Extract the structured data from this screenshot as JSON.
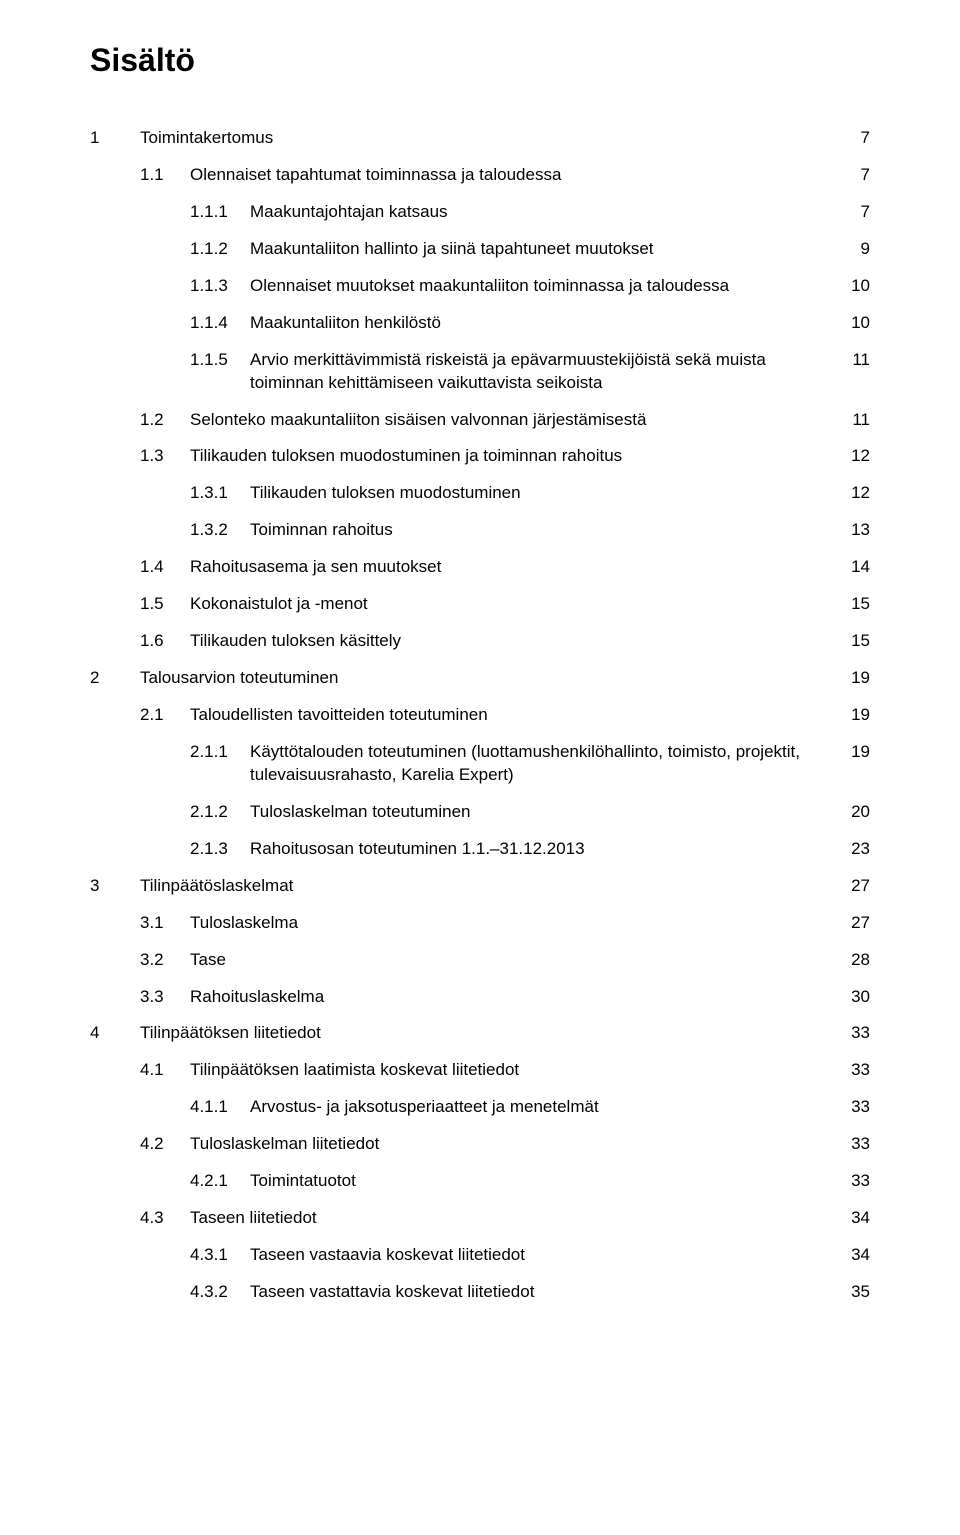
{
  "title": "Sisältö",
  "toc": [
    {
      "level": 0,
      "num": "1",
      "label": "Toimintakertomus",
      "page": "7"
    },
    {
      "level": 1,
      "num": "1.1",
      "label": "Olennaiset tapahtumat toiminnassa ja taloudessa",
      "page": "7"
    },
    {
      "level": 2,
      "num": "1.1.1",
      "label": "Maakuntajohtajan katsaus",
      "page": "7"
    },
    {
      "level": 2,
      "num": "1.1.2",
      "label": "Maakuntaliiton hallinto ja siinä tapahtuneet muutokset",
      "page": "9"
    },
    {
      "level": 2,
      "num": "1.1.3",
      "label": "Olennaiset muutokset maakuntaliiton toiminnassa ja taloudessa",
      "page": "10"
    },
    {
      "level": 2,
      "num": "1.1.4",
      "label": "Maakuntaliiton henkilöstö",
      "page": "10"
    },
    {
      "level": 2,
      "num": "1.1.5",
      "label": "Arvio merkittävimmistä riskeistä ja epävarmuustekijöistä sekä muista toiminnan kehittämiseen vaikuttavista seikoista",
      "page": "11"
    },
    {
      "level": 1,
      "num": "1.2",
      "label": "Selonteko maakuntaliiton sisäisen valvonnan järjestämisestä",
      "page": "11"
    },
    {
      "level": 1,
      "num": "1.3",
      "label": "Tilikauden tuloksen muodostuminen ja toiminnan rahoitus",
      "page": "12"
    },
    {
      "level": 2,
      "num": "1.3.1",
      "label": "Tilikauden tuloksen muodostuminen",
      "page": "12"
    },
    {
      "level": 2,
      "num": "1.3.2",
      "label": "Toiminnan rahoitus",
      "page": "13"
    },
    {
      "level": 1,
      "num": "1.4",
      "label": "Rahoitusasema ja sen muutokset",
      "page": "14"
    },
    {
      "level": 1,
      "num": "1.5",
      "label": "Kokonaistulot ja -menot",
      "page": "15"
    },
    {
      "level": 1,
      "num": "1.6",
      "label": "Tilikauden tuloksen käsittely",
      "page": "15"
    },
    {
      "level": 0,
      "num": "2",
      "label": "Talousarvion toteutuminen",
      "page": "19"
    },
    {
      "level": 1,
      "num": "2.1",
      "label": "Taloudellisten tavoitteiden toteutuminen",
      "page": "19"
    },
    {
      "level": 2,
      "num": "2.1.1",
      "label": "Käyttötalouden toteutuminen (luottamushenkilöhallinto, toimisto, projektit, tulevaisuusrahasto, Karelia Expert)",
      "page": "19"
    },
    {
      "level": 2,
      "num": "2.1.2",
      "label": "Tuloslaskelman toteutuminen",
      "page": "20"
    },
    {
      "level": 2,
      "num": "2.1.3",
      "label": "Rahoitusosan toteutuminen 1.1.–31.12.2013",
      "page": "23"
    },
    {
      "level": 0,
      "num": "3",
      "label": "Tilinpäätöslaskelmat",
      "page": "27"
    },
    {
      "level": 1,
      "num": "3.1",
      "label": "Tuloslaskelma",
      "page": "27"
    },
    {
      "level": 1,
      "num": "3.2",
      "label": "Tase",
      "page": "28"
    },
    {
      "level": 1,
      "num": "3.3",
      "label": "Rahoituslaskelma",
      "page": "30"
    },
    {
      "level": 0,
      "num": "4",
      "label": "Tilinpäätöksen liitetiedot",
      "page": "33"
    },
    {
      "level": 1,
      "num": "4.1",
      "label": "Tilinpäätöksen laatimista koskevat liitetiedot",
      "page": "33"
    },
    {
      "level": 2,
      "num": "4.1.1",
      "label": "Arvostus- ja jaksotusperiaatteet ja menetelmät",
      "page": "33"
    },
    {
      "level": 1,
      "num": "4.2",
      "label": "Tuloslaskelman liitetiedot",
      "page": "33"
    },
    {
      "level": 2,
      "num": "4.2.1",
      "label": "Toimintatuotot",
      "page": "33"
    },
    {
      "level": 1,
      "num": "4.3",
      "label": "Taseen liitetiedot",
      "page": "34"
    },
    {
      "level": 2,
      "num": "4.3.1",
      "label": "Taseen vastaavia koskevat liitetiedot",
      "page": "34"
    },
    {
      "level": 2,
      "num": "4.3.2",
      "label": "Taseen vastattavia koskevat liitetiedot",
      "page": "35"
    }
  ]
}
